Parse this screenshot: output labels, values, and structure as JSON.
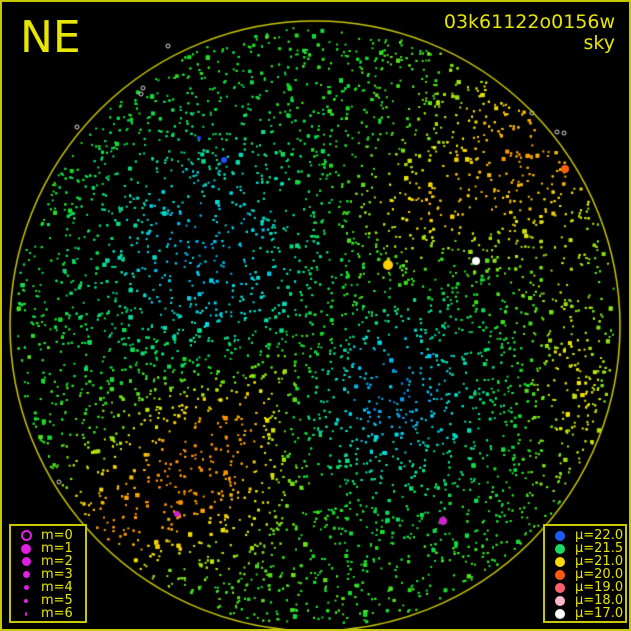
{
  "direction_label": "NE",
  "image_id": "03k61122o0156w",
  "image_type": "sky",
  "colors": {
    "frame": "#c8c800",
    "text": "#e6e600",
    "magnitude_symbol": "#e020e0"
  },
  "magnitude_legend": [
    {
      "label": "m=0",
      "style": "ring"
    },
    {
      "label": "m=1"
    },
    {
      "label": "m=2"
    },
    {
      "label": "m=3"
    },
    {
      "label": "m=4"
    },
    {
      "label": "m=5"
    },
    {
      "label": "m=6"
    }
  ],
  "brightness_legend": [
    {
      "label": "μ=22.0",
      "color": "#1f5cff"
    },
    {
      "label": "μ=21.5",
      "color": "#1ed760"
    },
    {
      "label": "μ=21.0",
      "color": "#ffd800"
    },
    {
      "label": "μ=20.0",
      "color": "#ff5a10"
    },
    {
      "label": "μ=19.0",
      "color": "#ff6070"
    },
    {
      "label": "μ=18.0",
      "color": "#ffb8c8"
    },
    {
      "label": "μ=17.0",
      "color": "#ffffff"
    }
  ]
}
